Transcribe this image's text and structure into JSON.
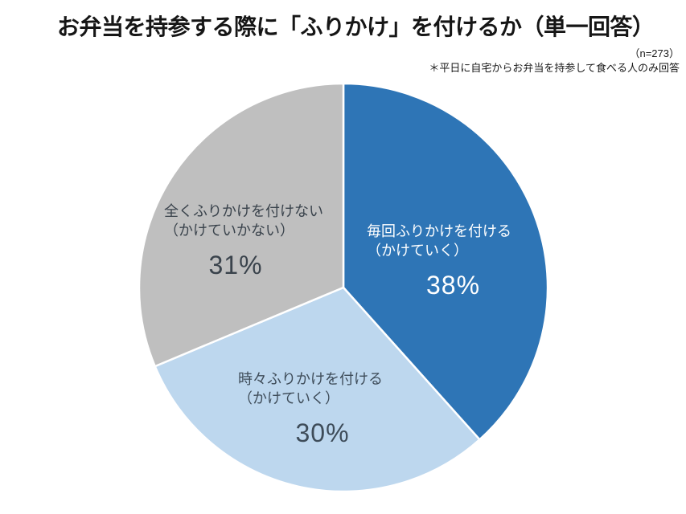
{
  "chart_data": {
    "type": "pie",
    "title": "お弁当を持参する際に「ふりかけ」を付けるか（単一回答）",
    "sample_size": "（n=273）",
    "footnote": "＊平日に自宅からお弁当を持参して食べる人のみ回答",
    "start_angle_deg": 0,
    "direction": "clockwise",
    "legend": "none",
    "background_color": "#FFFFFF",
    "slice_border_color": "#FFFFFF",
    "slices": [
      {
        "name": "every-time",
        "label_line1": "毎回ふりかけを付ける",
        "label_line2": "（かけていく）",
        "percent_label": "38%",
        "value": 38,
        "color": "#2E75B6",
        "text_color": "#FFFFFF"
      },
      {
        "name": "sometimes",
        "label_line1": "時々ふりかけを付ける",
        "label_line2": "（かけていく）",
        "percent_label": "30%",
        "value": 30,
        "color": "#BDD7EE",
        "text_color": "#3E4C59"
      },
      {
        "name": "never",
        "label_line1": "全くふりかけを付けない",
        "label_line2": "（かけていかない）",
        "percent_label": "31%",
        "value": 31,
        "color": "#BFBFBF",
        "text_color": "#3A434C"
      }
    ]
  }
}
